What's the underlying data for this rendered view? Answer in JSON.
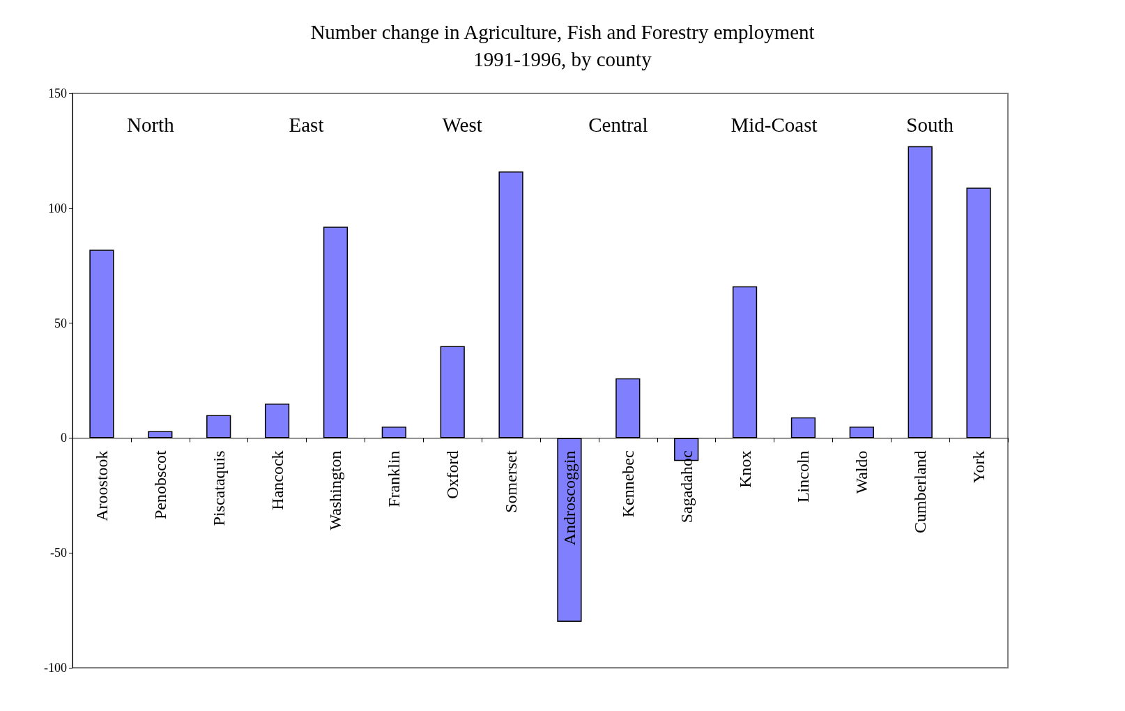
{
  "chart_data": {
    "type": "bar",
    "title": "Number change in Agriculture, Fish and Forestry employment",
    "subtitle": "1991-1996, by county",
    "categories": [
      "Aroostook",
      "Penobscot",
      "Piscataquis",
      "Hancock",
      "Washington",
      "Franklin",
      "Oxford",
      "Somerset",
      "Androscoggin",
      "Kennebec",
      "Sagadahoc",
      "Knox",
      "Lincoln",
      "Waldo",
      "Cumberland",
      "York"
    ],
    "values": [
      82,
      3,
      10,
      15,
      92,
      5,
      40,
      116,
      -80,
      26,
      -10,
      66,
      9,
      5,
      127,
      109
    ],
    "color": "#8080ff",
    "ylim": [
      -100,
      150
    ],
    "yticks": [
      -100,
      -50,
      0,
      50,
      100,
      150
    ],
    "annotations": [
      "North",
      "East",
      "West",
      "Central",
      "Mid-Coast",
      "South"
    ]
  }
}
